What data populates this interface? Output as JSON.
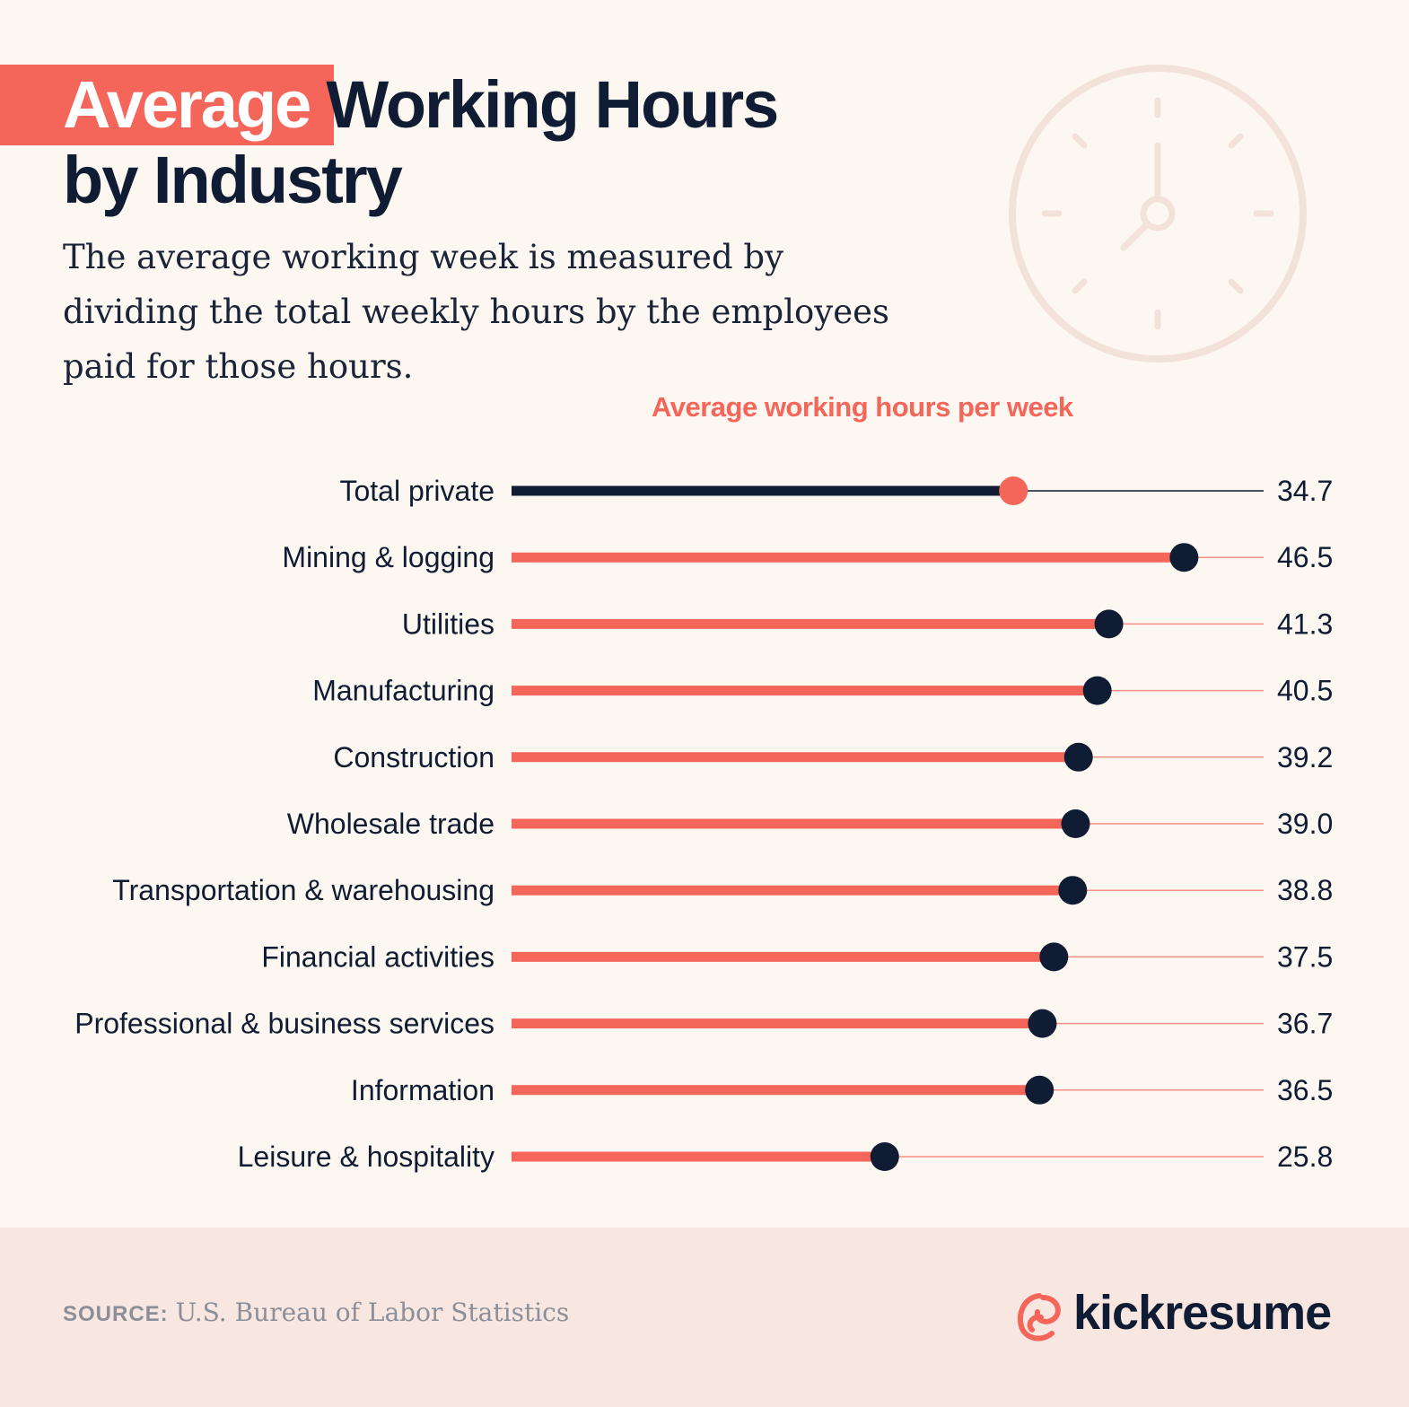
{
  "header": {
    "title_highlight": "Average",
    "title_rest": "Working Hours",
    "title_line2": "by Industry",
    "subtitle": "The average working week is measured by dividing the total weekly hours by the employees paid for those hours."
  },
  "icons": {
    "background": "clock-icon",
    "brand": "kickresume-logo-icon"
  },
  "colors": {
    "accent": "#f4655a",
    "dark": "#0f1c33",
    "background": "#fdf7f1",
    "footer": "#f8e6e0"
  },
  "chart_data": {
    "type": "bar",
    "title": "Average working hours per week",
    "categories": [
      "Total private",
      "Mining & logging",
      "Utilities",
      "Manufacturing",
      "Construction",
      "Wholesale trade",
      "Transportation & warehousing",
      "Financial activities",
      "Professional & business services",
      "Information",
      "Leisure & hospitality"
    ],
    "values": [
      34.7,
      46.5,
      41.3,
      40.5,
      39.2,
      39.0,
      38.8,
      37.5,
      36.7,
      36.5,
      25.8
    ],
    "value_labels": [
      "34.7",
      "46.5",
      "41.3",
      "40.5",
      "39.2",
      "39.0",
      "38.8",
      "37.5",
      "36.7",
      "36.5",
      "25.8"
    ],
    "highlight_category": "Total private",
    "xlim": [
      0,
      52
    ],
    "grid": false,
    "legend": "none"
  },
  "footer": {
    "source_label": "SOURCE:",
    "source_text": "U.S. Bureau of Labor Statistics",
    "brand": "kickresume"
  }
}
